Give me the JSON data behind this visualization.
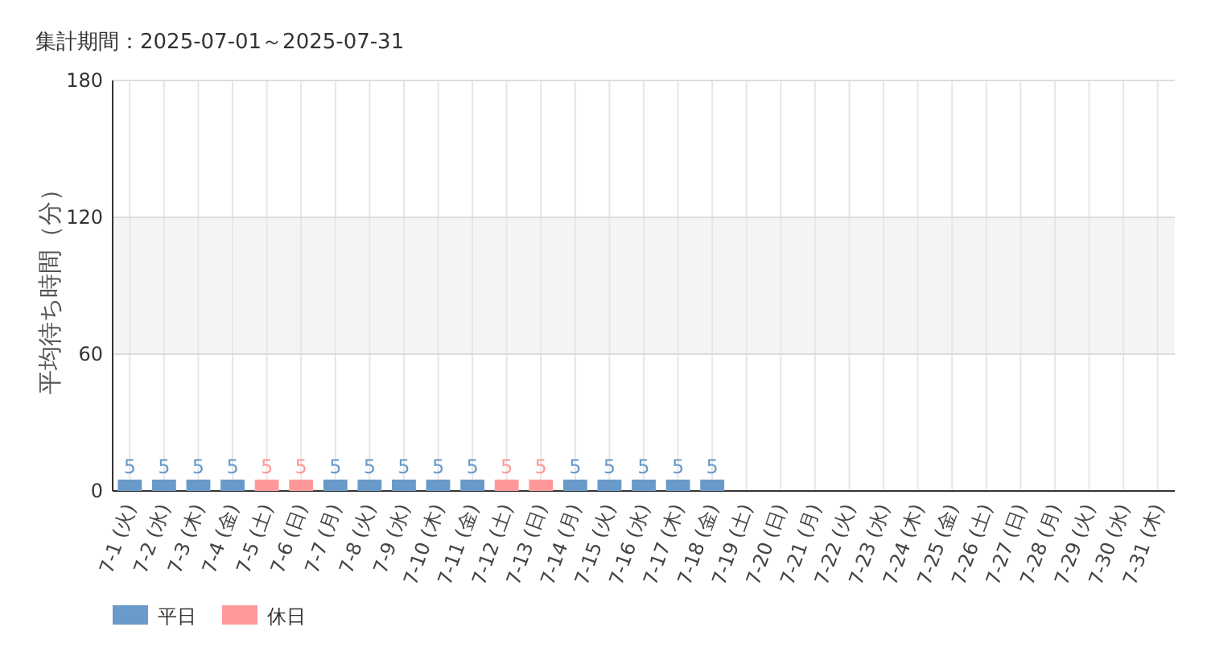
{
  "chart_data": {
    "type": "bar",
    "title": "集計期間：2025-07-01～2025-07-31",
    "ylabel": "平均待ち時間（分）",
    "categories": [
      "7-1 (火)",
      "7-2 (水)",
      "7-3 (木)",
      "7-4 (金)",
      "7-5 (土)",
      "7-6 (日)",
      "7-7 (月)",
      "7-8 (火)",
      "7-9 (水)",
      "7-10 (木)",
      "7-11 (金)",
      "7-12 (土)",
      "7-13 (日)",
      "7-14 (月)",
      "7-15 (火)",
      "7-16 (水)",
      "7-17 (木)",
      "7-18 (金)",
      "7-19 (土)",
      "7-20 (日)",
      "7-21 (月)",
      "7-22 (火)",
      "7-23 (水)",
      "7-24 (木)",
      "7-25 (金)",
      "7-26 (土)",
      "7-27 (日)",
      "7-28 (月)",
      "7-29 (火)",
      "7-30 (水)",
      "7-31 (木)"
    ],
    "series": [
      {
        "name": "平日",
        "color": "#6a9ac9",
        "values": [
          5,
          5,
          5,
          5,
          null,
          null,
          5,
          5,
          5,
          5,
          5,
          null,
          null,
          5,
          5,
          5,
          5,
          5,
          null,
          null,
          null,
          null,
          null,
          null,
          null,
          null,
          null,
          null,
          null,
          null,
          null
        ]
      },
      {
        "name": "休日",
        "color": "#ff9999",
        "values": [
          null,
          null,
          null,
          null,
          5,
          5,
          null,
          null,
          null,
          null,
          null,
          5,
          5,
          null,
          null,
          null,
          null,
          null,
          null,
          null,
          null,
          null,
          null,
          null,
          null,
          null,
          null,
          null,
          null,
          null,
          null
        ]
      }
    ],
    "stacked": true,
    "ylim": [
      0,
      180
    ],
    "yticks": [
      0,
      60,
      120,
      180
    ],
    "bands": [
      {
        "axis": "y",
        "from": 60,
        "to": 120,
        "color": "#f4f4f4"
      }
    ],
    "grid": true,
    "data_labels": true,
    "legend": "bottom left"
  }
}
